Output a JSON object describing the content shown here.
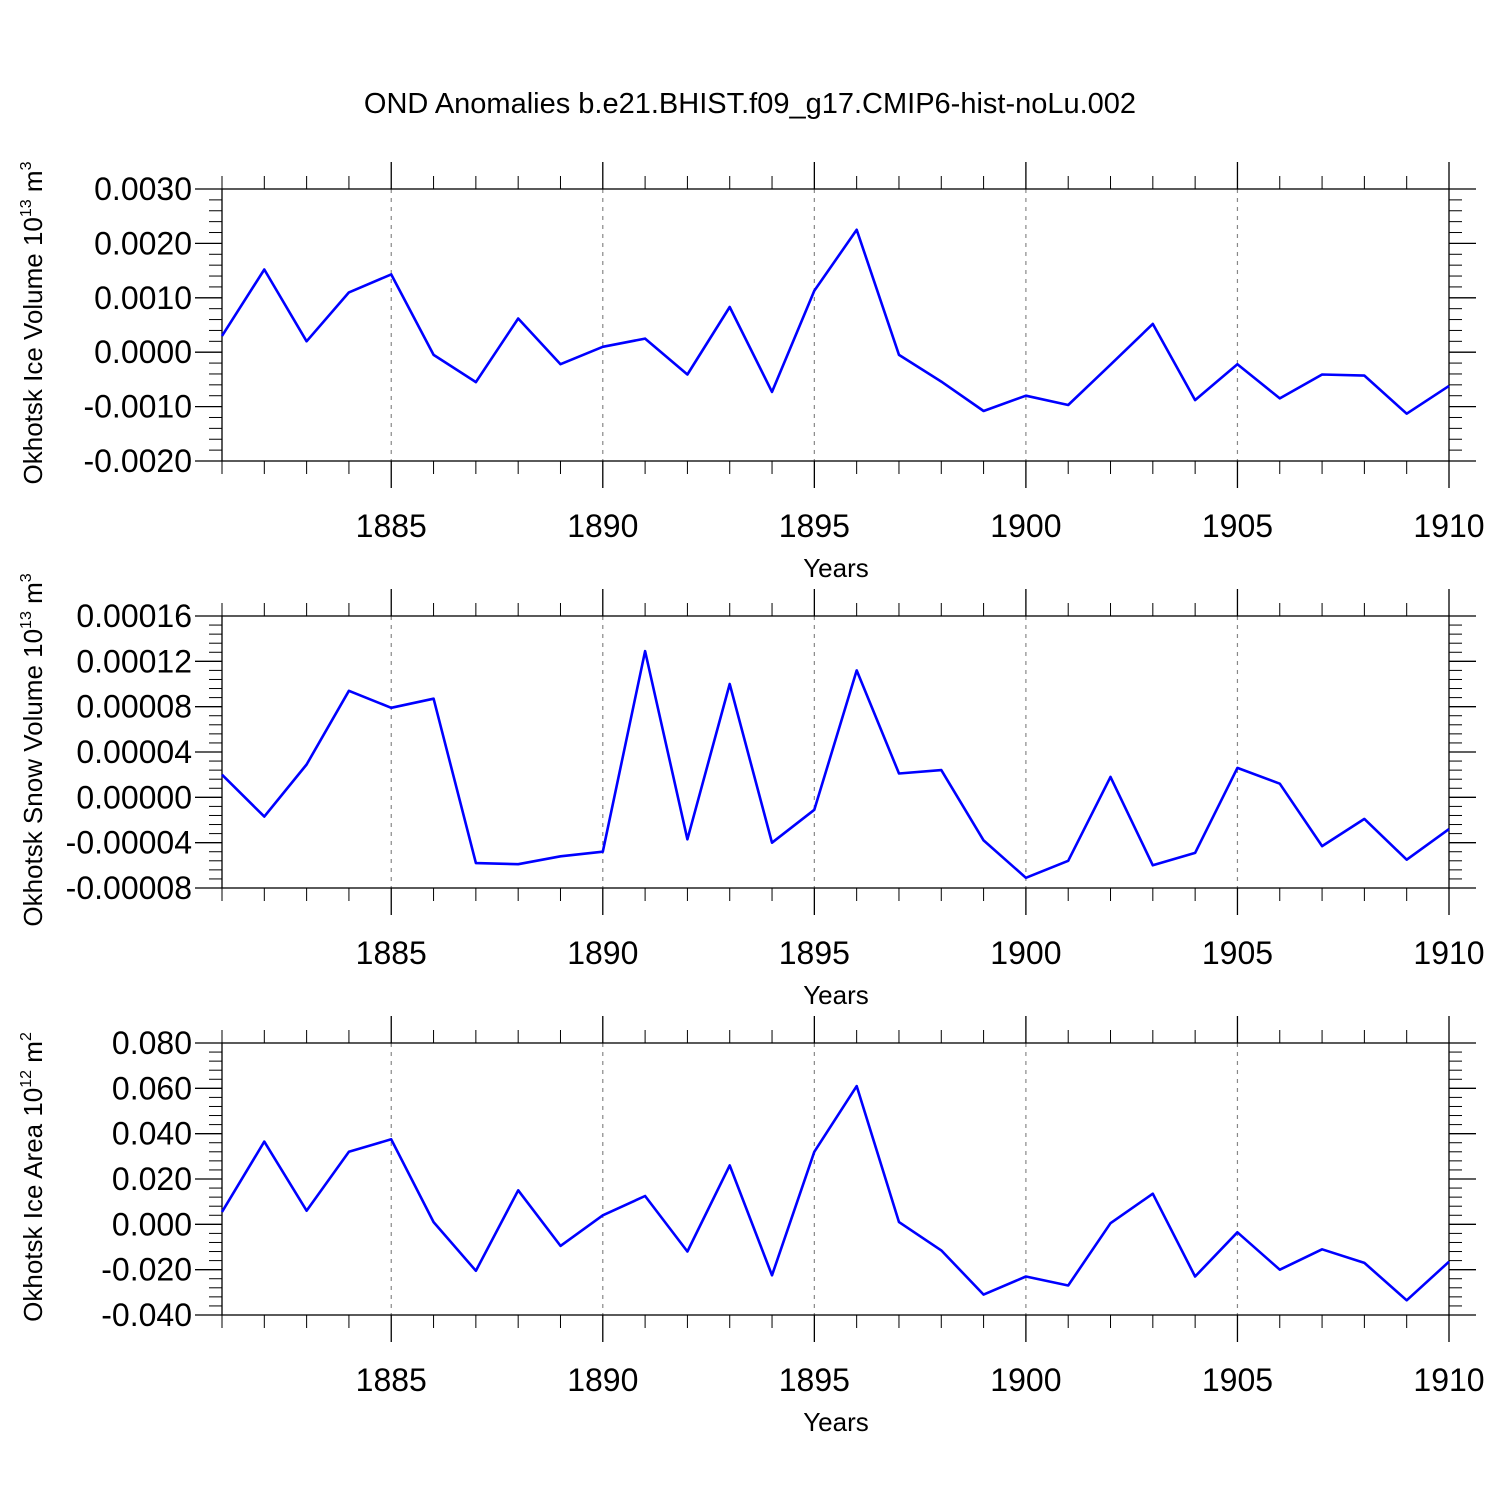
{
  "title": "OND Anomalies b.e21.BHIST.f09_g17.CMIP6-hist-noLu.002",
  "colors": {
    "line": "#0000ff",
    "axis": "#000000",
    "grid": "#888888",
    "background": "#ffffff"
  },
  "chart_data": [
    {
      "type": "line",
      "ylabel": {
        "text": "Okhotsk Ice Volume 10",
        "exp": "13",
        "unit": " m",
        "unit_exp": "3"
      },
      "xlabel": "Years",
      "xlim": [
        1881,
        1910
      ],
      "ylim": [
        -0.002,
        0.003
      ],
      "yticks": [
        -0.002,
        -0.001,
        0.0,
        0.001,
        0.002,
        0.003
      ],
      "ytick_labels": [
        "-0.0020",
        "-0.0010",
        "0.0000",
        "0.0010",
        "0.0020",
        "0.0030"
      ],
      "xticks": [
        1885,
        1890,
        1895,
        1900,
        1905,
        1910
      ],
      "xtick_labels": [
        "1885",
        "1890",
        "1895",
        "1900",
        "1905",
        "1910"
      ],
      "grid": "vertical dashed at major x ticks",
      "x": [
        1881,
        1882,
        1883,
        1884,
        1885,
        1886,
        1887,
        1888,
        1889,
        1890,
        1891,
        1892,
        1893,
        1894,
        1895,
        1896,
        1897,
        1898,
        1899,
        1900,
        1901,
        1902,
        1903,
        1904,
        1905,
        1906,
        1907,
        1908,
        1909,
        1910
      ],
      "values": [
        0.0003,
        0.00152,
        0.0002,
        0.0011,
        0.00143,
        -5e-05,
        -0.00055,
        0.00062,
        -0.00022,
        0.0001,
        0.00025,
        -0.00041,
        0.00083,
        -0.00073,
        0.00113,
        0.00225,
        -5e-05,
        -0.00054,
        -0.00108,
        -0.0008,
        -0.00097,
        -0.00023,
        0.00052,
        -0.00088,
        -0.00022,
        -0.00085,
        -0.00041,
        -0.00043,
        -0.00113,
        -0.00062
      ]
    },
    {
      "type": "line",
      "ylabel": {
        "text": "Okhotsk Snow Volume 10",
        "exp": "13",
        "unit": " m",
        "unit_exp": "3"
      },
      "xlabel": "Years",
      "xlim": [
        1881,
        1910
      ],
      "ylim": [
        -8e-05,
        0.00016
      ],
      "yticks": [
        -8e-05,
        -4e-05,
        0.0,
        4e-05,
        8e-05,
        0.00012,
        0.00016
      ],
      "ytick_labels": [
        "-0.00008",
        "-0.00004",
        "0.00000",
        "0.00004",
        "0.00008",
        "0.00012",
        "0.00016"
      ],
      "xticks": [
        1885,
        1890,
        1895,
        1900,
        1905,
        1910
      ],
      "xtick_labels": [
        "1885",
        "1890",
        "1895",
        "1900",
        "1905",
        "1910"
      ],
      "grid": "vertical dashed at major x ticks",
      "x": [
        1881,
        1882,
        1883,
        1884,
        1885,
        1886,
        1887,
        1888,
        1889,
        1890,
        1891,
        1892,
        1893,
        1894,
        1895,
        1896,
        1897,
        1898,
        1899,
        1900,
        1901,
        1902,
        1903,
        1904,
        1905,
        1906,
        1907,
        1908,
        1909,
        1910
      ],
      "values": [
        2e-05,
        -1.7e-05,
        2.9e-05,
        9.4e-05,
        7.9e-05,
        8.7e-05,
        -5.8e-05,
        -5.9e-05,
        -5.2e-05,
        -4.8e-05,
        0.000129,
        -3.7e-05,
        0.0001,
        -4e-05,
        -1.1e-05,
        0.000112,
        2.1e-05,
        2.4e-05,
        -3.8e-05,
        -7.1e-05,
        -5.6e-05,
        1.8e-05,
        -6e-05,
        -4.9e-05,
        2.6e-05,
        1.2e-05,
        -4.3e-05,
        -1.9e-05,
        -5.5e-05,
        -2.8e-05
      ]
    },
    {
      "type": "line",
      "ylabel": {
        "text": "Okhotsk Ice Area 10",
        "exp": "12",
        "unit": " m",
        "unit_exp": "2"
      },
      "xlabel": "Years",
      "xlim": [
        1881,
        1910
      ],
      "ylim": [
        -0.04,
        0.08
      ],
      "yticks": [
        -0.04,
        -0.02,
        0.0,
        0.02,
        0.04,
        0.06,
        0.08
      ],
      "ytick_labels": [
        "-0.040",
        "-0.020",
        "0.000",
        "0.020",
        "0.040",
        "0.060",
        "0.080"
      ],
      "xticks": [
        1885,
        1890,
        1895,
        1900,
        1905,
        1910
      ],
      "xtick_labels": [
        "1885",
        "1890",
        "1895",
        "1900",
        "1905",
        "1910"
      ],
      "grid": "vertical dashed at major x ticks",
      "x": [
        1881,
        1882,
        1883,
        1884,
        1885,
        1886,
        1887,
        1888,
        1889,
        1890,
        1891,
        1892,
        1893,
        1894,
        1895,
        1896,
        1897,
        1898,
        1899,
        1900,
        1901,
        1902,
        1903,
        1904,
        1905,
        1906,
        1907,
        1908,
        1909,
        1910
      ],
      "values": [
        0.0055,
        0.0365,
        0.006,
        0.032,
        0.0375,
        0.001,
        -0.0205,
        0.015,
        -0.0095,
        0.004,
        0.0125,
        -0.012,
        0.026,
        -0.0225,
        0.032,
        0.061,
        0.001,
        -0.0115,
        -0.031,
        -0.023,
        -0.027,
        0.0005,
        0.0135,
        -0.023,
        -0.0035,
        -0.02,
        -0.011,
        -0.017,
        -0.0335,
        -0.0165
      ]
    }
  ]
}
